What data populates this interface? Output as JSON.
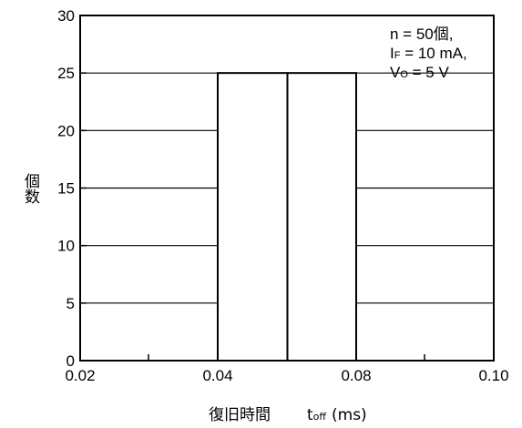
{
  "chart_data": {
    "type": "bar",
    "title": "",
    "xlabel": "復旧時間",
    "xlabel_symbol": "t",
    "xlabel_symbol_sub": "off",
    "xlabel_unit": "(ms)",
    "ylabel": "個数",
    "xlim": [
      0.02,
      0.1
    ],
    "ylim": [
      0,
      30
    ],
    "x_ticks": [
      "0.02",
      "0.04",
      "0.08",
      "0.10"
    ],
    "y_ticks": [
      "0",
      "5",
      "10",
      "15",
      "20",
      "25",
      "30"
    ],
    "bins": [
      {
        "label": "0.04–0.05",
        "value": 25
      },
      {
        "label": "0.05–0.08",
        "value": 25
      }
    ],
    "grid": "horizontal",
    "annotation": {
      "line1": "n = 50個,",
      "line2_main": "I",
      "line2_sub": "F",
      "line2_rest": " = 10 mA,",
      "line3_main": "V",
      "line3_sub": "O",
      "line3_rest": " = 5 V"
    }
  }
}
